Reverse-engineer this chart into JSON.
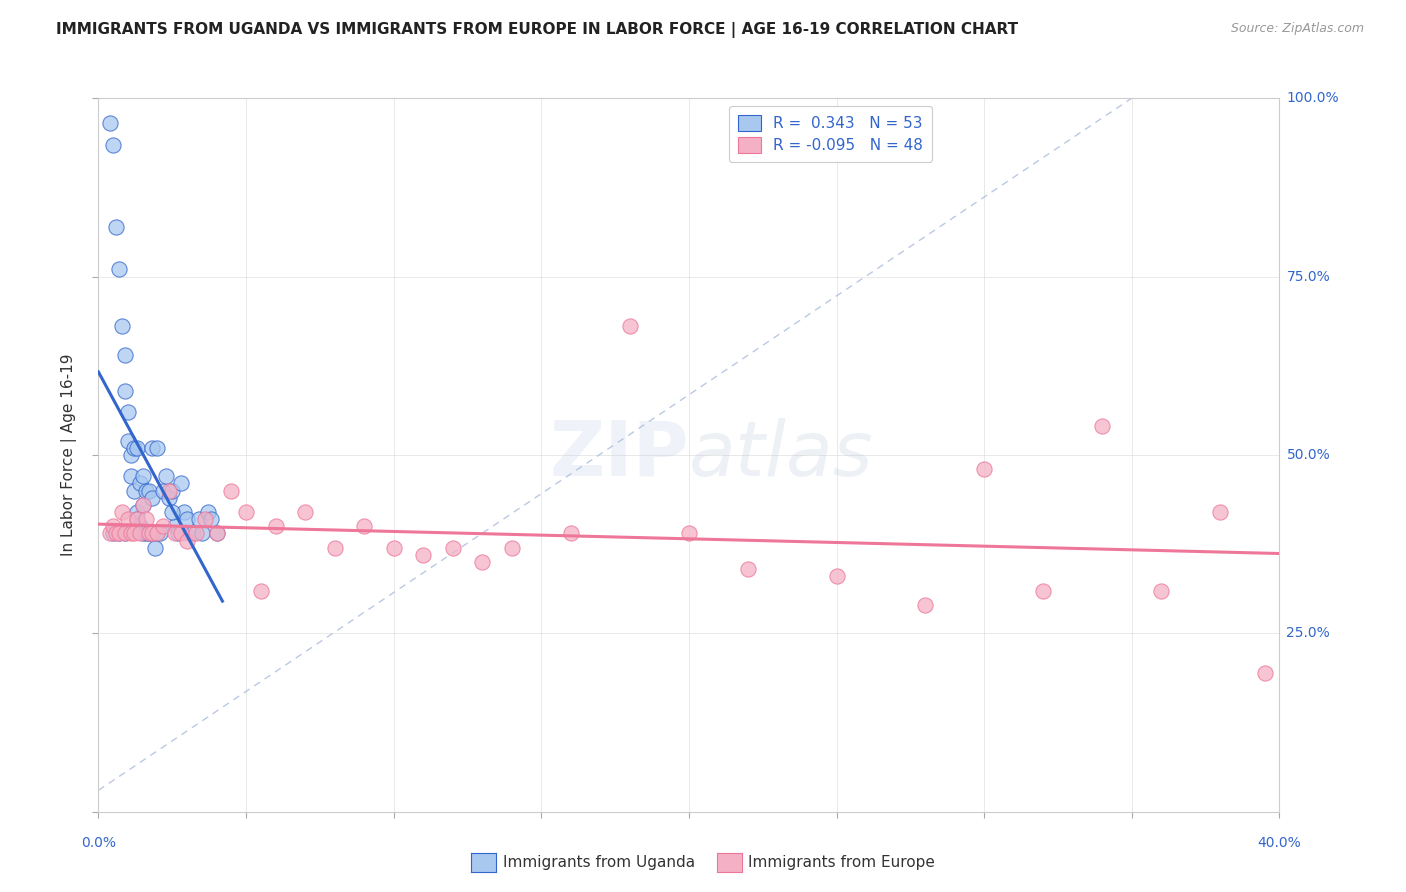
{
  "title": "IMMIGRANTS FROM UGANDA VS IMMIGRANTS FROM EUROPE IN LABOR FORCE | AGE 16-19 CORRELATION CHART",
  "source": "Source: ZipAtlas.com",
  "yaxis_label": "In Labor Force | Age 16-19",
  "legend_label1": "Immigrants from Uganda",
  "legend_label2": "Immigrants from Europe",
  "R1": 0.343,
  "N1": 53,
  "R2": -0.095,
  "N2": 48,
  "color_uganda": "#a8c8f0",
  "color_europe": "#f4b0c4",
  "color_uganda_line": "#3366cc",
  "color_europe_line": "#ee7799",
  "color_diag": "#aabbdd",
  "background": "#ffffff",
  "xlim": [
    0.0,
    0.4
  ],
  "ylim": [
    0.0,
    1.0
  ],
  "uganda_x": [
    0.004,
    0.005,
    0.006,
    0.007,
    0.008,
    0.009,
    0.009,
    0.01,
    0.01,
    0.011,
    0.011,
    0.012,
    0.012,
    0.013,
    0.013,
    0.014,
    0.014,
    0.015,
    0.015,
    0.015,
    0.016,
    0.016,
    0.017,
    0.017,
    0.018,
    0.018,
    0.019,
    0.019,
    0.02,
    0.02,
    0.021,
    0.022,
    0.023,
    0.024,
    0.025,
    0.026,
    0.027,
    0.028,
    0.029,
    0.03,
    0.031,
    0.032,
    0.034,
    0.035,
    0.037,
    0.038,
    0.04,
    0.005,
    0.007,
    0.009,
    0.013,
    0.017,
    0.025
  ],
  "uganda_y": [
    0.965,
    0.935,
    0.82,
    0.76,
    0.68,
    0.64,
    0.59,
    0.56,
    0.52,
    0.5,
    0.47,
    0.51,
    0.45,
    0.51,
    0.42,
    0.46,
    0.4,
    0.47,
    0.43,
    0.39,
    0.45,
    0.39,
    0.45,
    0.39,
    0.51,
    0.44,
    0.39,
    0.37,
    0.51,
    0.39,
    0.39,
    0.45,
    0.47,
    0.44,
    0.45,
    0.4,
    0.39,
    0.46,
    0.42,
    0.41,
    0.39,
    0.39,
    0.41,
    0.39,
    0.42,
    0.41,
    0.39,
    0.39,
    0.39,
    0.39,
    0.41,
    0.39,
    0.42
  ],
  "europe_x": [
    0.004,
    0.005,
    0.006,
    0.007,
    0.008,
    0.009,
    0.01,
    0.011,
    0.012,
    0.013,
    0.014,
    0.015,
    0.016,
    0.017,
    0.018,
    0.02,
    0.022,
    0.024,
    0.026,
    0.028,
    0.03,
    0.033,
    0.036,
    0.04,
    0.045,
    0.05,
    0.055,
    0.06,
    0.07,
    0.08,
    0.09,
    0.1,
    0.11,
    0.12,
    0.13,
    0.14,
    0.16,
    0.18,
    0.2,
    0.22,
    0.25,
    0.28,
    0.3,
    0.32,
    0.34,
    0.36,
    0.38,
    0.395
  ],
  "europe_y": [
    0.39,
    0.4,
    0.39,
    0.39,
    0.42,
    0.39,
    0.41,
    0.39,
    0.39,
    0.41,
    0.39,
    0.43,
    0.41,
    0.39,
    0.39,
    0.39,
    0.4,
    0.45,
    0.39,
    0.39,
    0.38,
    0.39,
    0.41,
    0.39,
    0.45,
    0.42,
    0.31,
    0.4,
    0.42,
    0.37,
    0.4,
    0.37,
    0.36,
    0.37,
    0.35,
    0.37,
    0.39,
    0.68,
    0.39,
    0.34,
    0.33,
    0.29,
    0.48,
    0.31,
    0.54,
    0.31,
    0.42,
    0.195
  ]
}
